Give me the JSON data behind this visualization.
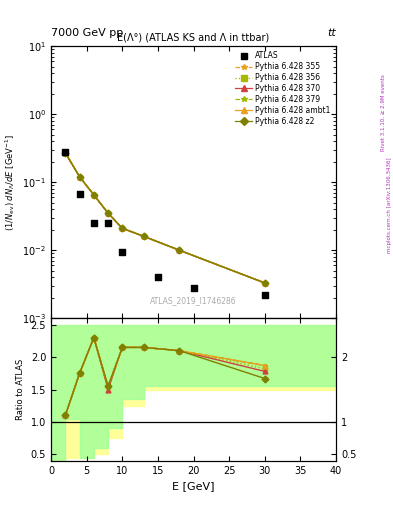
{
  "title_top": "7000 GeV pp",
  "title_right": "tt",
  "plot_title": "E(Λ°) (ATLAS KS and Λ in ttbar)",
  "watermark": "ATLAS_2019_I1746286",
  "xlabel": "E [GeV]",
  "ylabel_main": "(1/N_{ev}) dN_{Λ}/dE [GeV⁻¹]",
  "ylabel_ratio": "Ratio to ATLAS",
  "right_label1": "Rivet 3.1.10, ≥ 2.9M events",
  "right_label2": "mcplots.cern.ch [arXiv:1306.3436]",
  "atlas_x": [
    2,
    4,
    6,
    8,
    10,
    15,
    20,
    30
  ],
  "atlas_y": [
    0.28,
    0.068,
    0.025,
    0.025,
    0.0095,
    0.004,
    0.0028,
    0.0022
  ],
  "mc_x": [
    2,
    4,
    6,
    8,
    10,
    13,
    18,
    30
  ],
  "mc_355_y": [
    0.27,
    0.12,
    0.065,
    0.035,
    0.021,
    0.016,
    0.01,
    0.0033
  ],
  "mc_356_y": [
    0.27,
    0.12,
    0.065,
    0.035,
    0.021,
    0.016,
    0.01,
    0.0033
  ],
  "mc_370_y": [
    0.27,
    0.12,
    0.065,
    0.035,
    0.021,
    0.016,
    0.01,
    0.0033
  ],
  "mc_379_y": [
    0.27,
    0.12,
    0.065,
    0.035,
    0.021,
    0.016,
    0.01,
    0.0033
  ],
  "mc_ambt1_y": [
    0.27,
    0.12,
    0.065,
    0.035,
    0.021,
    0.016,
    0.01,
    0.0033
  ],
  "mc_z2_y": [
    0.27,
    0.12,
    0.065,
    0.035,
    0.021,
    0.016,
    0.01,
    0.0033
  ],
  "ratio_x": [
    2,
    4,
    6,
    8,
    10,
    13,
    18,
    30
  ],
  "ratio_355": [
    1.1,
    1.75,
    2.3,
    1.55,
    2.15,
    2.15,
    2.1,
    1.87
  ],
  "ratio_356": [
    1.1,
    1.75,
    2.3,
    1.55,
    2.15,
    2.15,
    2.1,
    1.82
  ],
  "ratio_370": [
    1.1,
    1.75,
    2.3,
    1.5,
    2.15,
    2.15,
    2.1,
    1.78
  ],
  "ratio_379": [
    1.1,
    1.75,
    2.3,
    1.55,
    2.15,
    2.15,
    2.1,
    1.87
  ],
  "ratio_ambt1": [
    1.1,
    1.75,
    2.3,
    1.55,
    2.15,
    2.15,
    2.1,
    1.87
  ],
  "ratio_z2": [
    1.1,
    1.75,
    2.3,
    1.55,
    2.15,
    2.15,
    2.1,
    1.67
  ],
  "green_band_edges": [
    0,
    2,
    4,
    6,
    8,
    10,
    13,
    18,
    30,
    40
  ],
  "green_band_lo": [
    0.0,
    1.05,
    0.45,
    0.6,
    0.9,
    1.35,
    1.55,
    1.55,
    1.55,
    1.55
  ],
  "green_band_hi": [
    2.5,
    2.5,
    2.5,
    2.5,
    2.5,
    2.5,
    2.5,
    2.5,
    2.5,
    2.5
  ],
  "yellow_band_edges": [
    0,
    2,
    4,
    6,
    8,
    10,
    13,
    18,
    30,
    40
  ],
  "yellow_band_lo": [
    0.0,
    0.45,
    0.45,
    0.5,
    0.75,
    1.25,
    1.5,
    1.5,
    1.5,
    1.5
  ],
  "yellow_band_hi": [
    2.5,
    2.5,
    2.5,
    2.5,
    2.5,
    2.5,
    2.5,
    2.5,
    2.5,
    2.5
  ],
  "color_355": "#e8a020",
  "color_356": "#a8b800",
  "color_370": "#d04040",
  "color_379": "#a0b800",
  "color_ambt1": "#e8a020",
  "color_z2": "#808000",
  "bg_color": "#ffffff",
  "xlim": [
    0,
    40
  ],
  "ylim_main": [
    0.001,
    10
  ],
  "ylim_ratio": [
    0.4,
    2.6
  ]
}
